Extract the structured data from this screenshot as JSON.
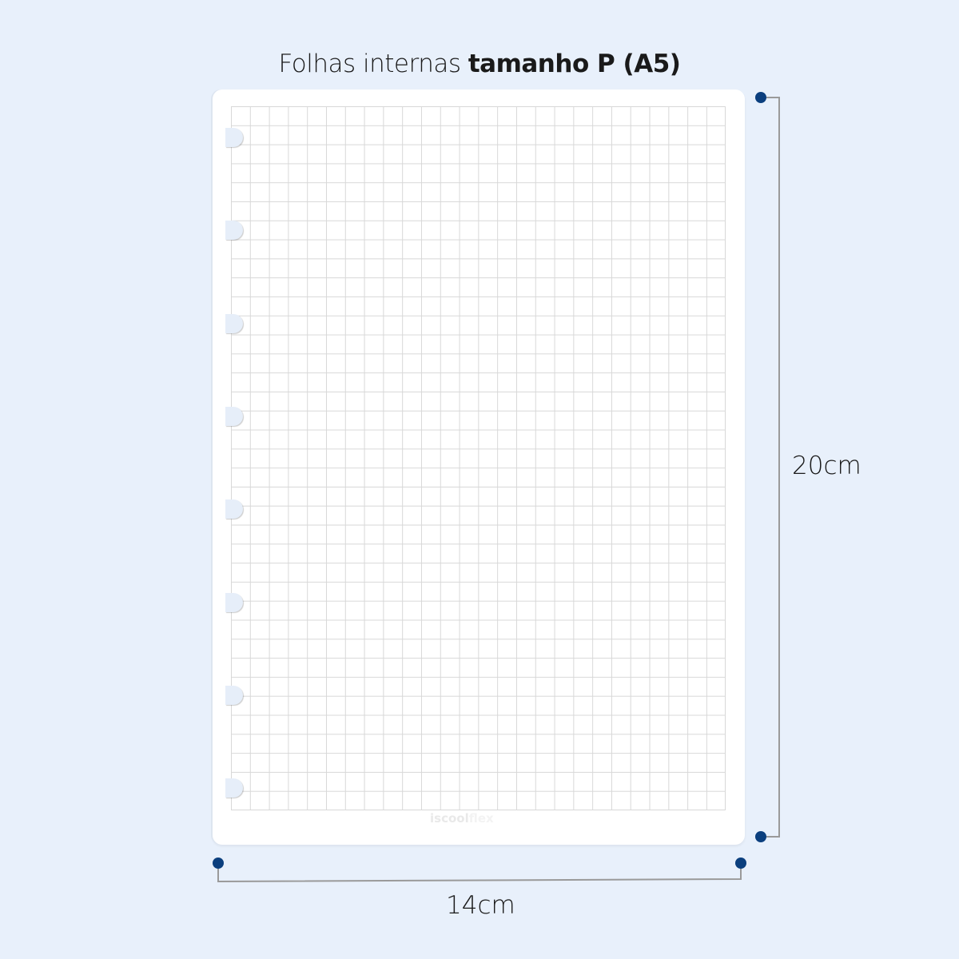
{
  "title": {
    "regular": "Folhas internas",
    "bold": "tamanho P (A5)"
  },
  "sheet": {
    "pattern": "grid",
    "ring_count": 8,
    "logo": {
      "part1": "iscool",
      "part2": "flex"
    }
  },
  "dimensions": {
    "height_label": "20cm",
    "width_label": "14cm"
  },
  "colors": {
    "background": "#e8f0fb",
    "marker": "#0b3f7e",
    "line": "#9a9a9a",
    "grid": "#d8d8d8"
  }
}
